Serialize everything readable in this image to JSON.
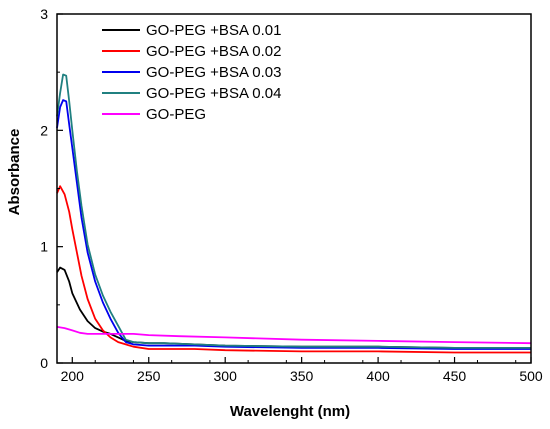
{
  "chart_data": {
    "type": "line",
    "title": "",
    "xlabel": "Wavelenght (nm)",
    "ylabel": "Absorbance",
    "xlim": [
      190,
      500
    ],
    "ylim": [
      0,
      3
    ],
    "xticks": [
      200,
      250,
      300,
      350,
      400,
      450,
      500
    ],
    "yticks": [
      0,
      1,
      2,
      3
    ],
    "grid": false,
    "legend_position": "top-left",
    "series": [
      {
        "name": "GO-PEG +BSA 0.01",
        "color": "#000000",
        "points": [
          [
            190,
            0.78
          ],
          [
            192,
            0.82
          ],
          [
            195,
            0.8
          ],
          [
            198,
            0.7
          ],
          [
            200,
            0.6
          ],
          [
            205,
            0.46
          ],
          [
            210,
            0.36
          ],
          [
            215,
            0.3
          ],
          [
            220,
            0.27
          ],
          [
            225,
            0.25
          ],
          [
            230,
            0.22
          ],
          [
            235,
            0.19
          ],
          [
            240,
            0.18
          ],
          [
            250,
            0.17
          ],
          [
            260,
            0.17
          ],
          [
            280,
            0.16
          ],
          [
            300,
            0.15
          ],
          [
            350,
            0.14
          ],
          [
            400,
            0.14
          ],
          [
            450,
            0.13
          ],
          [
            500,
            0.13
          ]
        ]
      },
      {
        "name": "GO-PEG +BSA 0.02",
        "color": "#ff0000",
        "points": [
          [
            190,
            1.46
          ],
          [
            192,
            1.52
          ],
          [
            195,
            1.45
          ],
          [
            198,
            1.3
          ],
          [
            200,
            1.15
          ],
          [
            203,
            0.95
          ],
          [
            206,
            0.75
          ],
          [
            210,
            0.55
          ],
          [
            215,
            0.38
          ],
          [
            220,
            0.28
          ],
          [
            225,
            0.22
          ],
          [
            230,
            0.18
          ],
          [
            235,
            0.16
          ],
          [
            240,
            0.14
          ],
          [
            250,
            0.12
          ],
          [
            260,
            0.12
          ],
          [
            280,
            0.12
          ],
          [
            300,
            0.11
          ],
          [
            350,
            0.1
          ],
          [
            400,
            0.1
          ],
          [
            450,
            0.09
          ],
          [
            500,
            0.09
          ]
        ]
      },
      {
        "name": "GO-PEG +BSA 0.03",
        "color": "#0000ee",
        "points": [
          [
            190,
            2.02
          ],
          [
            192,
            2.2
          ],
          [
            194,
            2.26
          ],
          [
            196,
            2.25
          ],
          [
            198,
            2.05
          ],
          [
            200,
            1.85
          ],
          [
            203,
            1.55
          ],
          [
            206,
            1.25
          ],
          [
            210,
            0.95
          ],
          [
            215,
            0.7
          ],
          [
            220,
            0.52
          ],
          [
            225,
            0.38
          ],
          [
            230,
            0.26
          ],
          [
            235,
            0.18
          ],
          [
            240,
            0.16
          ],
          [
            250,
            0.15
          ],
          [
            260,
            0.15
          ],
          [
            280,
            0.15
          ],
          [
            300,
            0.14
          ],
          [
            350,
            0.13
          ],
          [
            400,
            0.13
          ],
          [
            450,
            0.12
          ],
          [
            500,
            0.12
          ]
        ]
      },
      {
        "name": "GO-PEG +BSA 0.04",
        "color": "#208080",
        "points": [
          [
            190,
            2.12
          ],
          [
            192,
            2.32
          ],
          [
            194,
            2.48
          ],
          [
            196,
            2.47
          ],
          [
            198,
            2.25
          ],
          [
            200,
            2.0
          ],
          [
            203,
            1.65
          ],
          [
            206,
            1.35
          ],
          [
            210,
            1.02
          ],
          [
            215,
            0.76
          ],
          [
            220,
            0.58
          ],
          [
            225,
            0.44
          ],
          [
            230,
            0.32
          ],
          [
            235,
            0.2
          ],
          [
            240,
            0.18
          ],
          [
            250,
            0.17
          ],
          [
            260,
            0.17
          ],
          [
            280,
            0.16
          ],
          [
            300,
            0.15
          ],
          [
            350,
            0.14
          ],
          [
            400,
            0.14
          ],
          [
            450,
            0.13
          ],
          [
            500,
            0.13
          ]
        ]
      },
      {
        "name": "GO-PEG",
        "color": "#ff00ff",
        "points": [
          [
            190,
            0.31
          ],
          [
            195,
            0.3
          ],
          [
            200,
            0.28
          ],
          [
            205,
            0.26
          ],
          [
            210,
            0.25
          ],
          [
            220,
            0.25
          ],
          [
            230,
            0.25
          ],
          [
            240,
            0.25
          ],
          [
            250,
            0.24
          ],
          [
            270,
            0.23
          ],
          [
            300,
            0.22
          ],
          [
            350,
            0.2
          ],
          [
            400,
            0.19
          ],
          [
            450,
            0.18
          ],
          [
            500,
            0.17
          ]
        ]
      }
    ]
  }
}
